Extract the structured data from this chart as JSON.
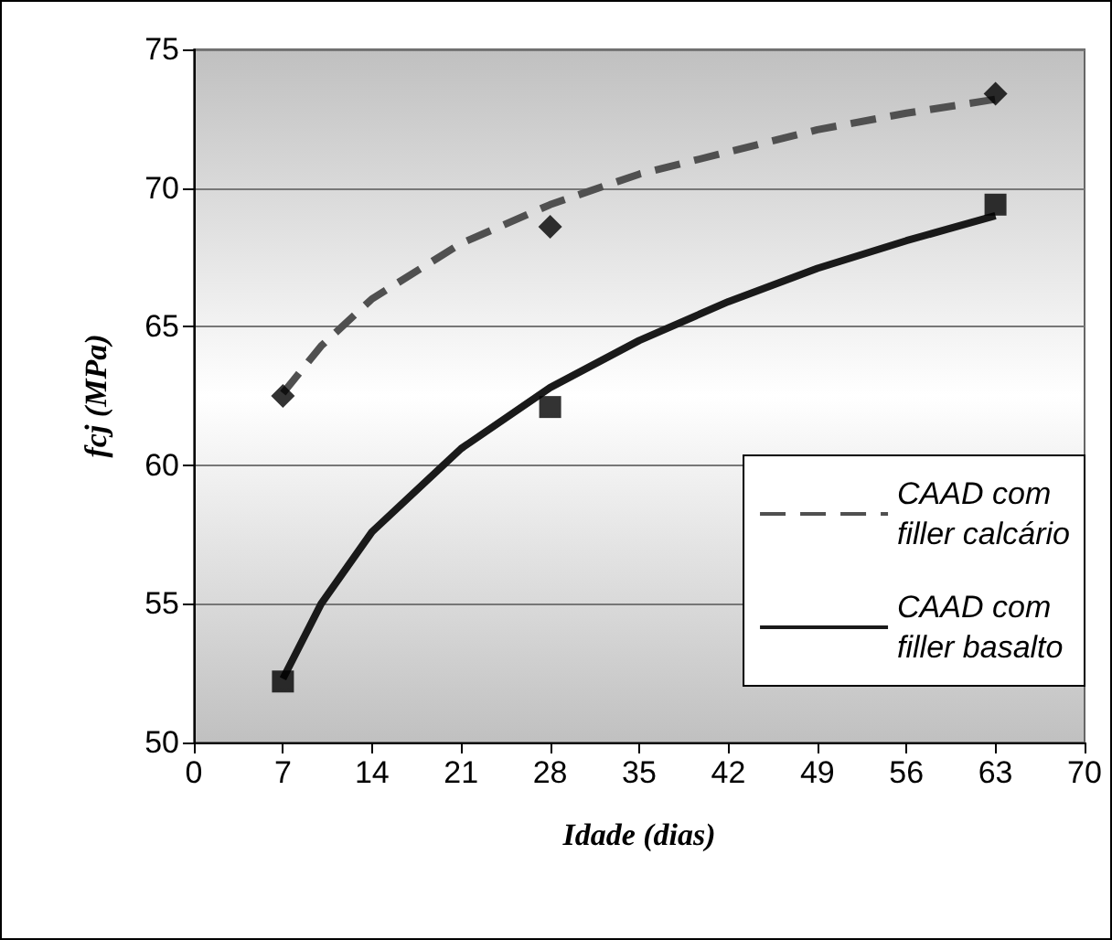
{
  "chart_data": {
    "type": "scatter",
    "xlabel": "Idade (dias)",
    "ylabel": "fcj (MPa)",
    "xlim": [
      0,
      70
    ],
    "xticks": [
      0,
      7,
      14,
      21,
      28,
      35,
      42,
      49,
      56,
      63,
      70
    ],
    "ylim": [
      50,
      75
    ],
    "yticks": [
      50,
      55,
      60,
      65,
      70,
      75
    ],
    "grid": "y",
    "legend": "bottom right",
    "series": [
      {
        "marker": "diamond",
        "color": "#000000",
        "x": [
          7,
          28,
          63
        ],
        "values": [
          62.5,
          68.6,
          73.4
        ]
      },
      {
        "marker": "square",
        "color": "#000000",
        "x": [
          7,
          28,
          63
        ],
        "values": [
          52.2,
          62.1,
          69.4
        ]
      },
      {
        "type": "line",
        "name": "CAAD com filler calcário",
        "line_style": "dashed",
        "color": "#505050",
        "x": [
          7,
          10,
          14,
          21,
          28,
          35,
          42,
          49,
          56,
          63
        ],
        "values": [
          62.6,
          64.3,
          66.0,
          68.0,
          69.4,
          70.5,
          71.3,
          72.1,
          72.7,
          73.2
        ]
      },
      {
        "type": "line",
        "name": "CAAD com filler basalto",
        "line_style": "solid",
        "color": "#1a1a1a",
        "x": [
          7,
          10,
          14,
          21,
          28,
          35,
          42,
          49,
          56,
          63
        ],
        "values": [
          52.3,
          55.0,
          57.6,
          60.6,
          62.8,
          64.5,
          65.9,
          67.1,
          68.1,
          69.0
        ]
      }
    ]
  }
}
